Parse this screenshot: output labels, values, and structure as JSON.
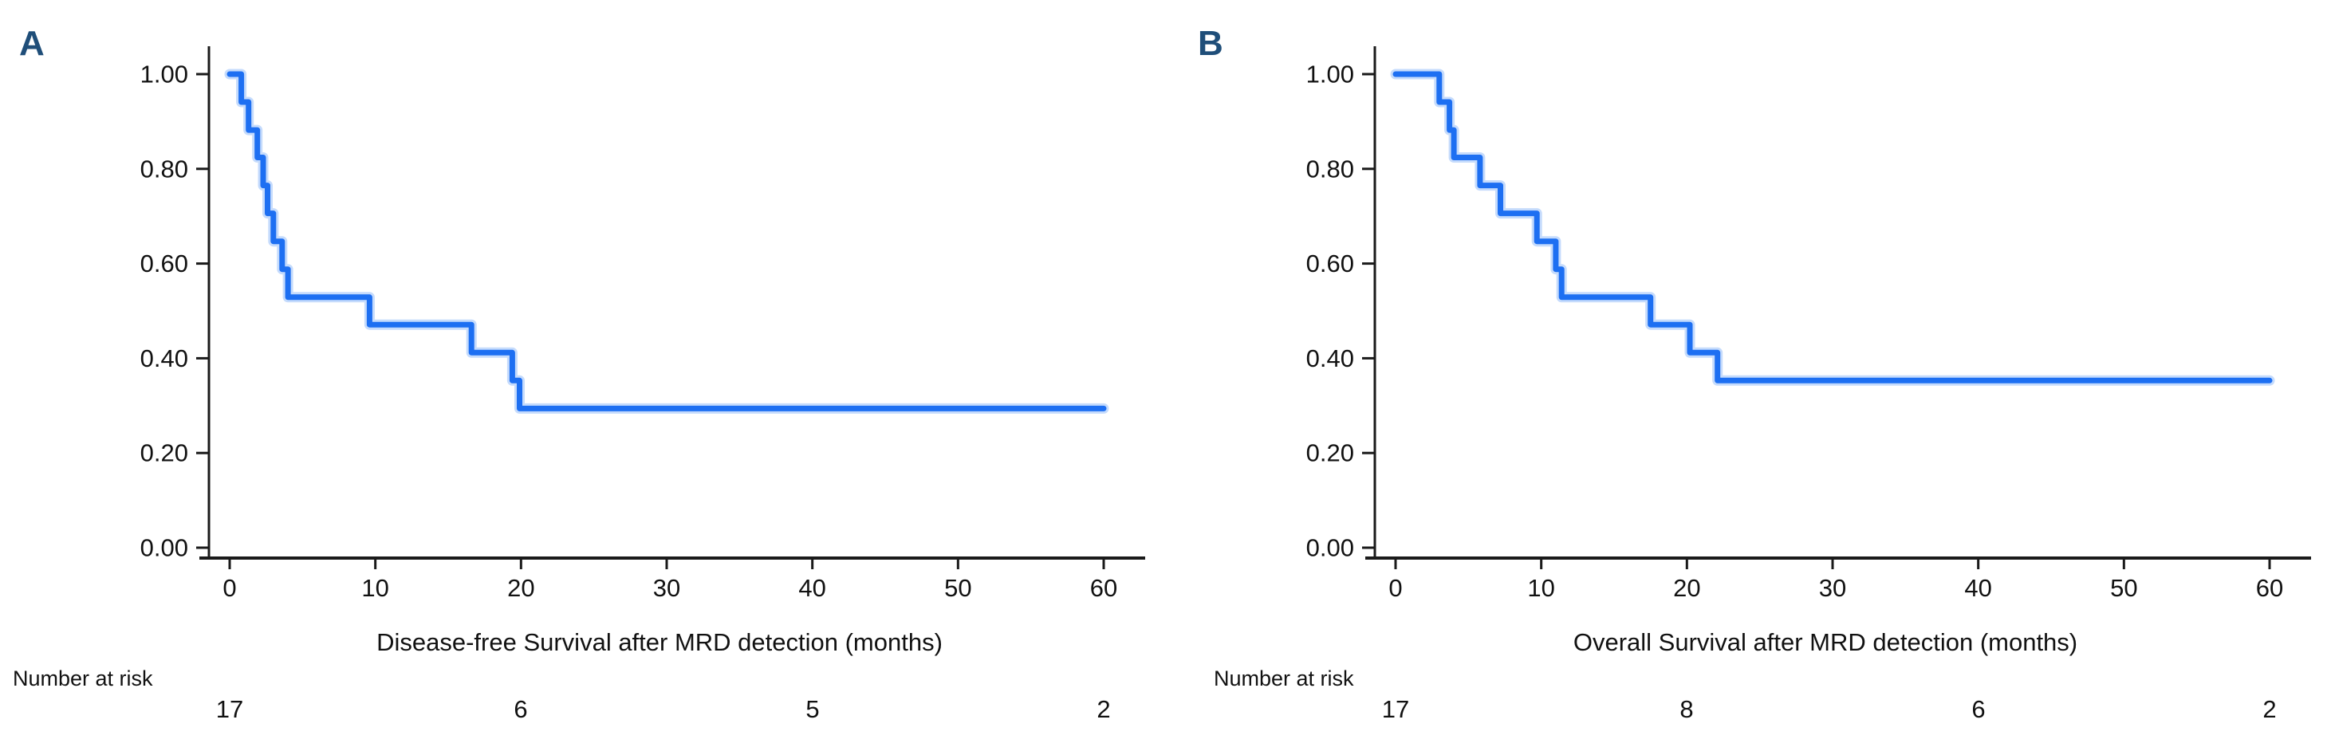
{
  "figure": {
    "background": "#ffffff",
    "panels": [
      {
        "label": "A",
        "xlabel": "Disease-free Survival after MRD detection (months)",
        "number_at_risk_label": "Number at risk",
        "number_at_risk_counts": [
          "17",
          "6",
          "5",
          "2"
        ]
      },
      {
        "label": "B",
        "xlabel": "Overall Survival after MRD detection (months)",
        "number_at_risk_label": "Number at risk",
        "number_at_risk_counts": [
          "17",
          "8",
          "6",
          "2"
        ]
      }
    ]
  },
  "colors": {
    "curve": "#1d6ff2",
    "curve_halo": "#7fb0f8",
    "axis": "#1a1a1a",
    "tick_text": "#111111",
    "panel_label": "#1f4e79"
  },
  "chart_data": [
    {
      "type": "line",
      "subtype": "kaplan-meier-step",
      "panel": "A",
      "title": "",
      "xlabel": "Disease-free Survival after MRD detection (months)",
      "ylabel": "",
      "xlim": [
        0,
        60
      ],
      "ylim": [
        0.0,
        1.0
      ],
      "xticks": [
        0,
        10,
        20,
        30,
        40,
        50,
        60
      ],
      "ytick_values": [
        1.0,
        0.8,
        0.6,
        0.4,
        0.2,
        0.0
      ],
      "ytick_labels": [
        "1.00",
        "0.80",
        "0.60",
        "0.40",
        "0.20",
        "0.00"
      ],
      "grid": false,
      "legend": null,
      "series": [
        {
          "name": "Disease-free survival",
          "color": "#1d6ff2",
          "steps": [
            [
              0,
              1.0
            ],
            [
              0.8,
              0.941
            ],
            [
              1.3,
              0.882
            ],
            [
              1.9,
              0.824
            ],
            [
              2.3,
              0.765
            ],
            [
              2.6,
              0.706
            ],
            [
              3.0,
              0.647
            ],
            [
              3.6,
              0.588
            ],
            [
              4.0,
              0.529
            ],
            [
              9.6,
              0.471
            ],
            [
              16.6,
              0.412
            ],
            [
              19.4,
              0.353
            ],
            [
              19.9,
              0.294
            ],
            [
              60,
              0.294
            ]
          ]
        }
      ],
      "number_at_risk": {
        "times": [
          0,
          20,
          40,
          60
        ],
        "counts": [
          17,
          6,
          5,
          2
        ]
      }
    },
    {
      "type": "line",
      "subtype": "kaplan-meier-step",
      "panel": "B",
      "title": "",
      "xlabel": "Overall Survival after MRD detection (months)",
      "ylabel": "",
      "xlim": [
        0,
        60
      ],
      "ylim": [
        0.0,
        1.0
      ],
      "xticks": [
        0,
        10,
        20,
        30,
        40,
        50,
        60
      ],
      "ytick_values": [
        1.0,
        0.8,
        0.6,
        0.4,
        0.2,
        0.0
      ],
      "ytick_labels": [
        "1.00",
        "0.80",
        "0.60",
        "0.40",
        "0.20",
        "0.00"
      ],
      "grid": false,
      "legend": null,
      "series": [
        {
          "name": "Overall survival",
          "color": "#1d6ff2",
          "steps": [
            [
              0,
              1.0
            ],
            [
              3.0,
              0.941
            ],
            [
              3.7,
              0.882
            ],
            [
              4.0,
              0.824
            ],
            [
              5.8,
              0.765
            ],
            [
              7.2,
              0.706
            ],
            [
              9.7,
              0.647
            ],
            [
              11.0,
              0.588
            ],
            [
              11.4,
              0.529
            ],
            [
              17.5,
              0.471
            ],
            [
              20.2,
              0.412
            ],
            [
              22.1,
              0.353
            ],
            [
              60,
              0.353
            ]
          ]
        }
      ],
      "number_at_risk": {
        "times": [
          0,
          20,
          40,
          60
        ],
        "counts": [
          17,
          8,
          6,
          2
        ]
      }
    }
  ]
}
